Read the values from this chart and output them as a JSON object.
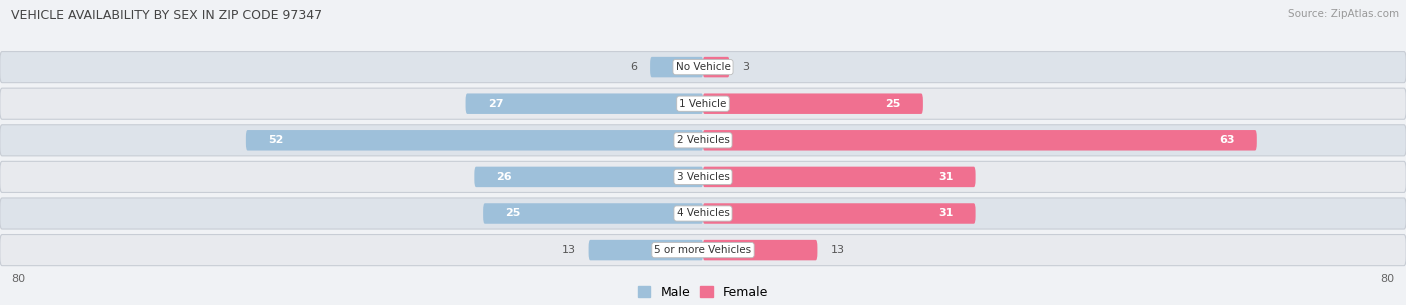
{
  "title": "VEHICLE AVAILABILITY BY SEX IN ZIP CODE 97347",
  "source": "Source: ZipAtlas.com",
  "categories": [
    "No Vehicle",
    "1 Vehicle",
    "2 Vehicles",
    "3 Vehicles",
    "4 Vehicles",
    "5 or more Vehicles"
  ],
  "male_values": [
    6,
    27,
    52,
    26,
    25,
    13
  ],
  "female_values": [
    3,
    25,
    63,
    31,
    31,
    13
  ],
  "male_color": "#9ec0da",
  "female_color": "#f07090",
  "row_colors": [
    "#dde3ea",
    "#e8eaee",
    "#dde3ea",
    "#e8eaee",
    "#dde3ea",
    "#e8eaee"
  ],
  "x_max": 80,
  "figsize": [
    14.06,
    3.05
  ],
  "dpi": 100,
  "bg_color": "#f0f2f5",
  "inner_label_threshold": 14,
  "inner_label_color": "#ffffff",
  "outer_label_color": "#555555"
}
